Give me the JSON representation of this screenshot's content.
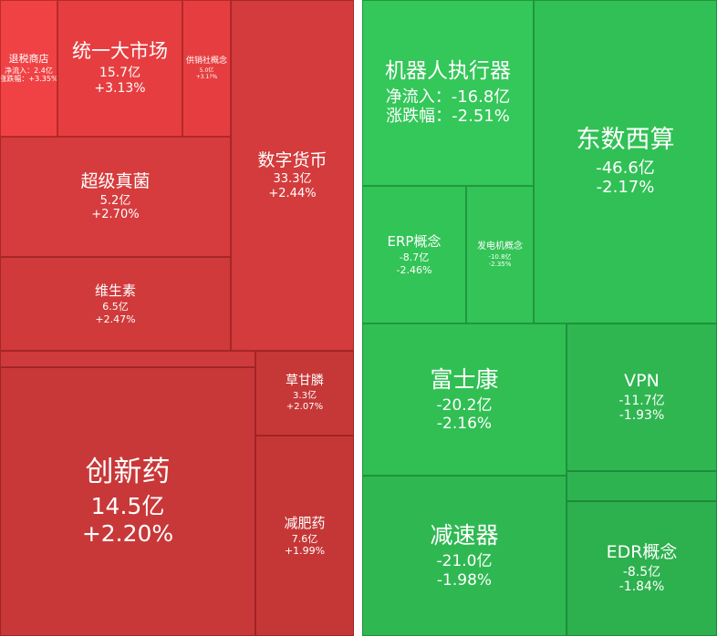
{
  "colors": {
    "background": "#ffffff",
    "up_tile": "#d63c3d",
    "up_strong": "#f04244",
    "down_tile": "#2fbf55",
    "down_strong": "#34c759"
  },
  "chart_data": [
    {
      "type": "heatmap",
      "subtype": "treemap",
      "metric_labels": {
        "flow": "净流入",
        "change": "涨跌幅"
      },
      "tiles": [
        {
          "name": "退税商店",
          "flow": "2.4亿",
          "change": "+3.35%",
          "flow_text": "净流入：2.4亿",
          "change_text": "涨跌幅：+3.35%",
          "color": "#f04244"
        },
        {
          "name": "统一大市场",
          "flow": "15.7亿",
          "change": "+3.13%",
          "color": "#e63e40"
        },
        {
          "name": "供销社概念",
          "flow": "5.0亿",
          "change": "+3.1?%",
          "color": "#e63e40"
        },
        {
          "name": "数字货币",
          "flow": "33.3亿",
          "change": "+2.44%",
          "color": "#d33b3c"
        },
        {
          "name": "超级真菌",
          "flow": "5.2亿",
          "change": "+2.70%",
          "color": "#d63c3d"
        },
        {
          "name": "维生素",
          "flow": "6.5亿",
          "change": "+2.47%",
          "color": "#d03a3b"
        },
        {
          "name": "创新药",
          "flow": "14.5亿",
          "change": "+2.20%",
          "color": "#c83839"
        },
        {
          "name": "草甘膦",
          "flow": "3.3亿",
          "change": "+2.07%",
          "color": "#c63838"
        },
        {
          "name": "减肥药",
          "flow": "7.6亿",
          "change": "+1.99%",
          "color": "#c53737"
        }
      ]
    },
    {
      "type": "heatmap",
      "subtype": "treemap",
      "metric_labels": {
        "flow": "净流入",
        "change": "涨跌幅"
      },
      "tiles": [
        {
          "name": "机器人执行器",
          "flow": "-16.8亿",
          "change": "-2.51%",
          "flow_text": "净流入：-16.8亿",
          "change_text": "涨跌幅：-2.51%",
          "color": "#34c759"
        },
        {
          "name": "东数西算",
          "flow": "-46.6亿",
          "change": "-2.17%",
          "color": "#31c055"
        },
        {
          "name": "ERP概念",
          "flow": "-8.7亿",
          "change": "-2.46%",
          "color": "#33c457"
        },
        {
          "name": "发电机概念",
          "flow": "-10.8亿",
          "change": "-2.35%",
          "color": "#33c357"
        },
        {
          "name": "富士康",
          "flow": "-20.2亿",
          "change": "-2.16%",
          "color": "#31bf54"
        },
        {
          "name": "VPN",
          "flow": "-11.7亿",
          "change": "-1.93%",
          "color": "#2fb650"
        },
        {
          "name": "减速器",
          "flow": "-21.0亿",
          "change": "-1.98%",
          "color": "#2fb852"
        },
        {
          "name": "EDR概念",
          "flow": "-8.5亿",
          "change": "-1.84%",
          "color": "#2db04e"
        }
      ]
    }
  ]
}
